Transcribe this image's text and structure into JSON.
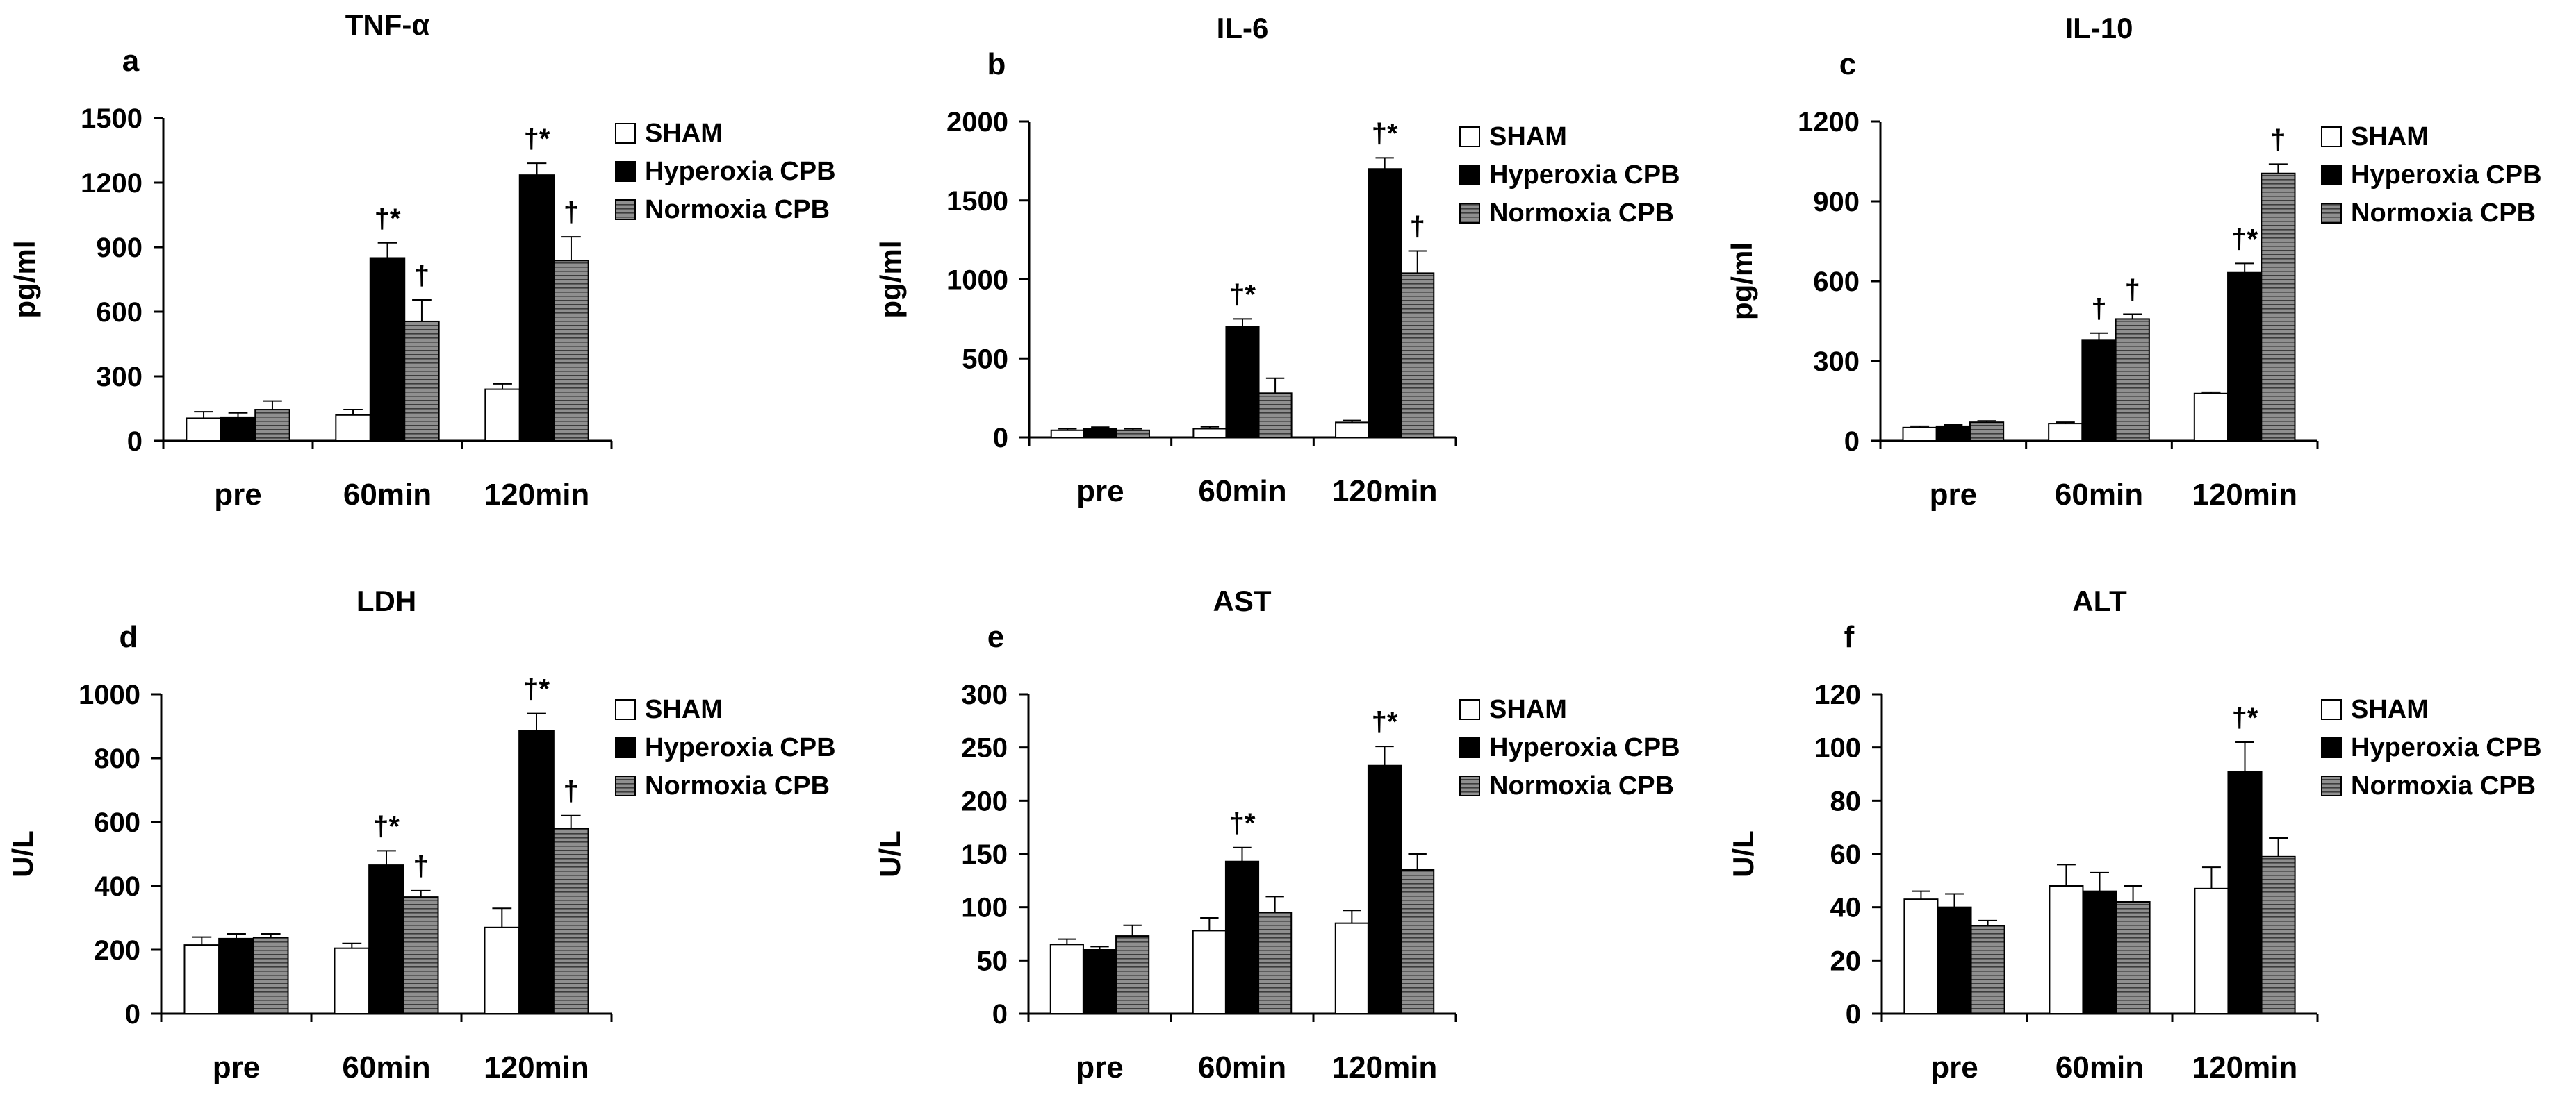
{
  "colors": {
    "sham_fill": "#ffffff",
    "hyperoxia_fill": "#000000",
    "normoxia_fill": "#8f8f8f",
    "normoxia_stripe": "#3c3c3c",
    "axis": "#000000"
  },
  "chart_data": [
    {
      "type": "bar",
      "panel_letter": "a",
      "title": "TNF-α",
      "ylabel": "pg/ml",
      "ylim": [
        0,
        1500
      ],
      "yticks": [
        0,
        300,
        600,
        900,
        1200,
        1500
      ],
      "categories": [
        "pre",
        "60min",
        "120min"
      ],
      "legend": [
        "SHAM",
        "Hyperoxia CPB",
        "Normoxia CPB"
      ],
      "series": [
        {
          "name": "SHAM",
          "values": [
            105,
            120,
            240
          ],
          "errors": [
            30,
            25,
            25
          ]
        },
        {
          "name": "Hyperoxia CPB",
          "values": [
            110,
            850,
            1235
          ],
          "errors": [
            20,
            70,
            55
          ]
        },
        {
          "name": "Normoxia CPB",
          "values": [
            145,
            555,
            838
          ],
          "errors": [
            40,
            100,
            110
          ]
        }
      ],
      "annotations": [
        {
          "text": "†*",
          "series": 1,
          "category": 1
        },
        {
          "text": "†",
          "series": 2,
          "category": 1
        },
        {
          "text": "†*",
          "series": 1,
          "category": 2
        },
        {
          "text": "†",
          "series": 2,
          "category": 2
        }
      ]
    },
    {
      "type": "bar",
      "panel_letter": "b",
      "title": "IL-6",
      "ylabel": "pg/ml",
      "ylim": [
        0,
        2000
      ],
      "yticks": [
        0,
        500,
        1000,
        1500,
        2000
      ],
      "categories": [
        "pre",
        "60min",
        "120min"
      ],
      "legend": [
        "SHAM",
        "Hyperoxia CPB",
        "Normoxia CPB"
      ],
      "series": [
        {
          "name": "SHAM",
          "values": [
            45,
            55,
            95
          ],
          "errors": [
            10,
            12,
            12
          ]
        },
        {
          "name": "Hyperoxia CPB",
          "values": [
            55,
            700,
            1700
          ],
          "errors": [
            10,
            50,
            70
          ]
        },
        {
          "name": "Normoxia CPB",
          "values": [
            45,
            280,
            1040
          ],
          "errors": [
            10,
            95,
            140
          ]
        }
      ],
      "annotations": [
        {
          "text": "†*",
          "series": 1,
          "category": 1
        },
        {
          "text": "†*",
          "series": 1,
          "category": 2
        },
        {
          "text": "†",
          "series": 2,
          "category": 2
        }
      ]
    },
    {
      "type": "bar",
      "panel_letter": "c",
      "title": "IL-10",
      "ylabel": "pg/ml",
      "ylim": [
        0,
        1200
      ],
      "yticks": [
        0,
        300,
        600,
        900,
        1200
      ],
      "categories": [
        "pre",
        "60min",
        "120min"
      ],
      "legend": [
        "SHAM",
        "Hyperoxia CPB",
        "Normoxia CPB"
      ],
      "series": [
        {
          "name": "SHAM",
          "values": [
            50,
            65,
            178
          ],
          "errors": [
            5,
            5,
            5
          ]
        },
        {
          "name": "Hyperoxia CPB",
          "values": [
            55,
            380,
            632
          ],
          "errors": [
            5,
            25,
            35
          ]
        },
        {
          "name": "Normoxia CPB",
          "values": [
            70,
            458,
            1005
          ],
          "errors": [
            5,
            18,
            35
          ]
        }
      ],
      "annotations": [
        {
          "text": "†",
          "series": 1,
          "category": 1
        },
        {
          "text": "†",
          "series": 2,
          "category": 1
        },
        {
          "text": "†*",
          "series": 1,
          "category": 2
        },
        {
          "text": "†",
          "series": 2,
          "category": 2
        }
      ]
    },
    {
      "type": "bar",
      "panel_letter": "d",
      "title": "LDH",
      "ylabel": "U/L",
      "ylim": [
        0,
        1000
      ],
      "yticks": [
        0,
        200,
        400,
        600,
        800,
        1000
      ],
      "categories": [
        "pre",
        "60min",
        "120min"
      ],
      "legend": [
        "SHAM",
        "Hyperoxia CPB",
        "Normoxia CPB"
      ],
      "series": [
        {
          "name": "SHAM",
          "values": [
            215,
            205,
            270
          ],
          "errors": [
            25,
            15,
            60
          ]
        },
        {
          "name": "Hyperoxia CPB",
          "values": [
            235,
            465,
            885
          ],
          "errors": [
            15,
            45,
            55
          ]
        },
        {
          "name": "Normoxia CPB",
          "values": [
            238,
            365,
            580
          ],
          "errors": [
            12,
            20,
            40
          ]
        }
      ],
      "annotations": [
        {
          "text": "†*",
          "series": 1,
          "category": 1
        },
        {
          "text": "†",
          "series": 2,
          "category": 1
        },
        {
          "text": "†*",
          "series": 1,
          "category": 2
        },
        {
          "text": "†",
          "series": 2,
          "category": 2
        }
      ]
    },
    {
      "type": "bar",
      "panel_letter": "e",
      "title": "AST",
      "ylabel": "U/L",
      "ylim": [
        0,
        300
      ],
      "yticks": [
        0,
        50,
        100,
        150,
        200,
        250,
        300
      ],
      "categories": [
        "pre",
        "60min",
        "120min"
      ],
      "legend": [
        "SHAM",
        "Hyperoxia CPB",
        "Normoxia CPB"
      ],
      "series": [
        {
          "name": "SHAM",
          "values": [
            65,
            78,
            85
          ],
          "errors": [
            5,
            12,
            12
          ]
        },
        {
          "name": "Hyperoxia CPB",
          "values": [
            60,
            143,
            233
          ],
          "errors": [
            3,
            13,
            18
          ]
        },
        {
          "name": "Normoxia CPB",
          "values": [
            73,
            95,
            135
          ],
          "errors": [
            10,
            15,
            15
          ]
        }
      ],
      "annotations": [
        {
          "text": "†*",
          "series": 1,
          "category": 1
        },
        {
          "text": "†*",
          "series": 1,
          "category": 2
        }
      ]
    },
    {
      "type": "bar",
      "panel_letter": "f",
      "title": "ALT",
      "ylabel": "U/L",
      "ylim": [
        0,
        120
      ],
      "yticks": [
        0,
        20,
        40,
        60,
        80,
        100,
        120
      ],
      "categories": [
        "pre",
        "60min",
        "120min"
      ],
      "legend": [
        "SHAM",
        "Hyperoxia CPB",
        "Normoxia CPB"
      ],
      "series": [
        {
          "name": "SHAM",
          "values": [
            43,
            48,
            47
          ],
          "errors": [
            3,
            8,
            8
          ]
        },
        {
          "name": "Hyperoxia CPB",
          "values": [
            40,
            46,
            91
          ],
          "errors": [
            5,
            7,
            11
          ]
        },
        {
          "name": "Normoxia CPB",
          "values": [
            33,
            42,
            59
          ],
          "errors": [
            2,
            6,
            7
          ]
        }
      ],
      "annotations": [
        {
          "text": "†*",
          "series": 1,
          "category": 2
        }
      ]
    }
  ]
}
